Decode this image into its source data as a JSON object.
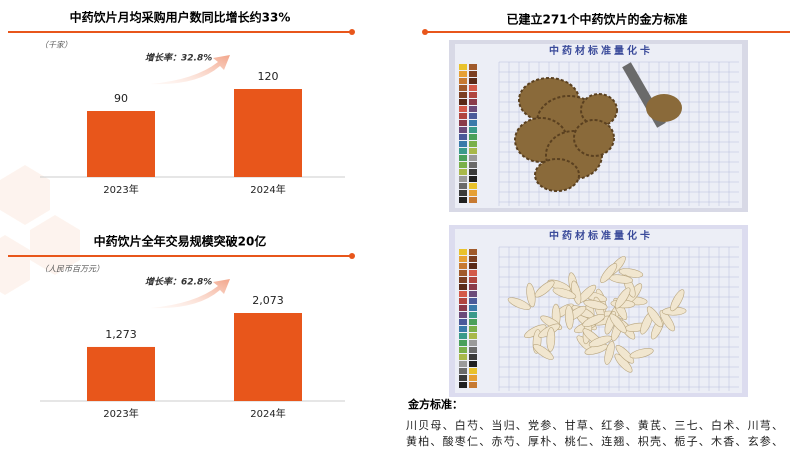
{
  "chart_data": [
    {
      "type": "bar",
      "title": "中药饮片月均采购用户数同比增长约33%",
      "unit": "（千家）",
      "annotation": "增长率：32.8%",
      "categories": [
        "2023年",
        "2024年"
      ],
      "values": [
        90,
        120
      ],
      "color": "#e8561b"
    },
    {
      "type": "bar",
      "title": "中药饮片全年交易规模突破20亿",
      "unit": "（人民币百万元）",
      "annotation": "增长率：62.8%",
      "categories": [
        "2023年",
        "2024年"
      ],
      "values": [
        1273,
        2073
      ],
      "value_labels": [
        "1,273",
        "2,073"
      ],
      "color": "#e8561b"
    }
  ],
  "right_panel": {
    "title": "已建立271个中药饮片的金方标准",
    "card_label": "中药材标准量化卡",
    "standard_heading": "金方标准：",
    "standard_list": "川贝母、白芍、当归、党参、甘草、红参、黄芪、三七、白术、川芎、黄柏、酸枣仁、赤芍、厚朴、桃仁、连翘、枳壳、栀子、木香、玄参、海马、白芷、郁金、干姜等"
  }
}
